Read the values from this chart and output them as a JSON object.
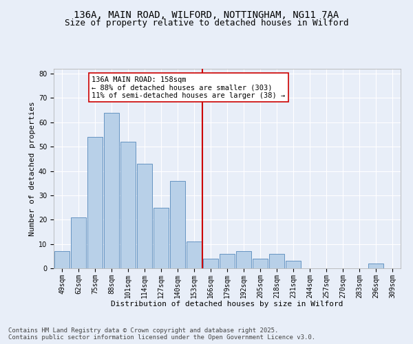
{
  "title_line1": "136A, MAIN ROAD, WILFORD, NOTTINGHAM, NG11 7AA",
  "title_line2": "Size of property relative to detached houses in Wilford",
  "xlabel": "Distribution of detached houses by size in Wilford",
  "ylabel": "Number of detached properties",
  "categories": [
    "49sqm",
    "62sqm",
    "75sqm",
    "88sqm",
    "101sqm",
    "114sqm",
    "127sqm",
    "140sqm",
    "153sqm",
    "166sqm",
    "179sqm",
    "192sqm",
    "205sqm",
    "218sqm",
    "231sqm",
    "244sqm",
    "257sqm",
    "270sqm",
    "283sqm",
    "296sqm",
    "309sqm"
  ],
  "values": [
    7,
    21,
    54,
    64,
    52,
    43,
    25,
    36,
    11,
    4,
    6,
    7,
    4,
    6,
    3,
    0,
    0,
    0,
    0,
    2,
    0
  ],
  "bar_color": "#b8d0e8",
  "bar_edge_color": "#5588bb",
  "reference_line_x": 8.5,
  "annotation_text": "136A MAIN ROAD: 158sqm\n← 88% of detached houses are smaller (303)\n11% of semi-detached houses are larger (38) →",
  "annotation_box_color": "#ffffff",
  "annotation_box_edge": "#cc0000",
  "vline_color": "#cc0000",
  "ylim": [
    0,
    82
  ],
  "yticks": [
    0,
    10,
    20,
    30,
    40,
    50,
    60,
    70,
    80
  ],
  "background_color": "#e8eef8",
  "plot_background": "#e8eef8",
  "grid_color": "#ffffff",
  "footer": "Contains HM Land Registry data © Crown copyright and database right 2025.\nContains public sector information licensed under the Open Government Licence v3.0.",
  "title_fontsize": 10,
  "subtitle_fontsize": 9,
  "axis_label_fontsize": 8,
  "tick_fontsize": 7,
  "annotation_fontsize": 7.5,
  "footer_fontsize": 6.5
}
